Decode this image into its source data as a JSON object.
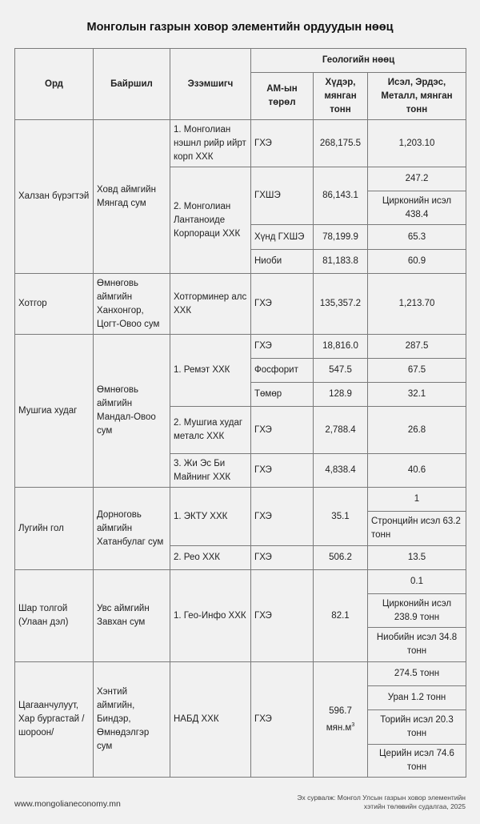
{
  "title": "Монголын газрын ховор элементийн ордуудын нөөц",
  "headers": {
    "deposit": "Орд",
    "location": "Байршил",
    "owner": "Эзэмшигч",
    "geo": "Геологийн нөөц",
    "type": "АМ-ын төрөл",
    "ore": "Хүдэр, мянган тонн",
    "oxide": "Исэл, Эрдэс, Металл, мянган тонн"
  },
  "rows": {
    "khalzan": {
      "deposit": "Халзан бүрэгтэй",
      "location": "Ховд аймгийн Мянгад сум",
      "owner1": "1. Монголиан нэшнл рийр ийрт корп ХХК",
      "type1": "ГХЭ",
      "ore1": "268,175.5",
      "ox1": "1,203.10",
      "owner2": "2. Монголиан Лантаноиде Корпораци ХХК",
      "type2": "ГХШЭ",
      "ore2": "86,143.1",
      "ox2a": "247.2",
      "ox2b": "Цирконийн исэл 438.4",
      "type3": "Хүнд ГХШЭ",
      "ore3": "78,199.9",
      "ox3": "65.3",
      "type4": "Ниоби",
      "ore4": "81,183.8",
      "ox4": "60.9"
    },
    "khotgor": {
      "deposit": "Хотгор",
      "location": "Өмнөговь аймгийн Ханхонгор, Цогт-Овоо сум",
      "owner": "Хотгорминер алс ХХК",
      "type": "ГХЭ",
      "ore": "135,357.2",
      "ox": "1,213.70"
    },
    "mushgia": {
      "deposit": "Мушгиа худаг",
      "location": "Өмнөговь аймгийн Мандал-Овоо сум",
      "owner1": "1. Ремэт ХХК",
      "type1": "ГХЭ",
      "ore1": "18,816.0",
      "ox1": "287.5",
      "type2": "Фосфорит",
      "ore2": "547.5",
      "ox2": "67.5",
      "type3": "Төмөр",
      "ore3": "128.9",
      "ox3": "32.1",
      "owner4": "2. Мушгиа худаг металс ХХК",
      "type4": "ГХЭ",
      "ore4": "2,788.4",
      "ox4": "26.8",
      "owner5": "3. Жи Эс Би Майнинг ХХК",
      "type5": "ГХЭ",
      "ore5": "4,838.4",
      "ox5": "40.6"
    },
    "lugiin": {
      "deposit": "Лугийн гол",
      "location": "Дорноговь аймгийн Хатанбулаг сум",
      "owner1": "1. ЭКТУ ХХК",
      "type1": "ГХЭ",
      "ore1": "35.1",
      "ox1a": "1",
      "ox1b": "Стронцийн исэл 63.2 тонн",
      "owner2": "2. Рео ХХК",
      "type2": "ГХЭ",
      "ore2": "506.2",
      "ox2": "13.5"
    },
    "shar": {
      "deposit": "Шар толгой (Улаан дэл)",
      "location": "Увс аймгийн Завхан сум",
      "owner": "1. Гео-Инфо ХХК",
      "type": "ГХЭ",
      "ore": "82.1",
      "ox1": "0.1",
      "ox2": "Цирконийн исэл 238.9 тонн",
      "ox3": "Ниобийн исэл 34.8 тонн"
    },
    "tsagaan": {
      "deposit": "Цагаанчулуут, Хар бургастай /шороон/",
      "location": "Хэнтий аймгийн, Биндэр, Өмнөдэлгэр сум",
      "owner": "НАБД ХХК",
      "type": "ГХЭ",
      "ore": "596.7 мян.м",
      "ore_sup": "3",
      "ox1": "274.5 тонн",
      "ox2": "Уран 1.2 тонн",
      "ox3": "Торийн исэл 20.3 тонн",
      "ox4": "Церийн исэл 74.6 тонн"
    }
  },
  "footer": {
    "website": "www.mongolianeconomy.mn",
    "source": "Эх сурвалж: Монгол Улсын газрын ховор элементийн хэтийн төлөвийн судалгаа, 2025"
  }
}
